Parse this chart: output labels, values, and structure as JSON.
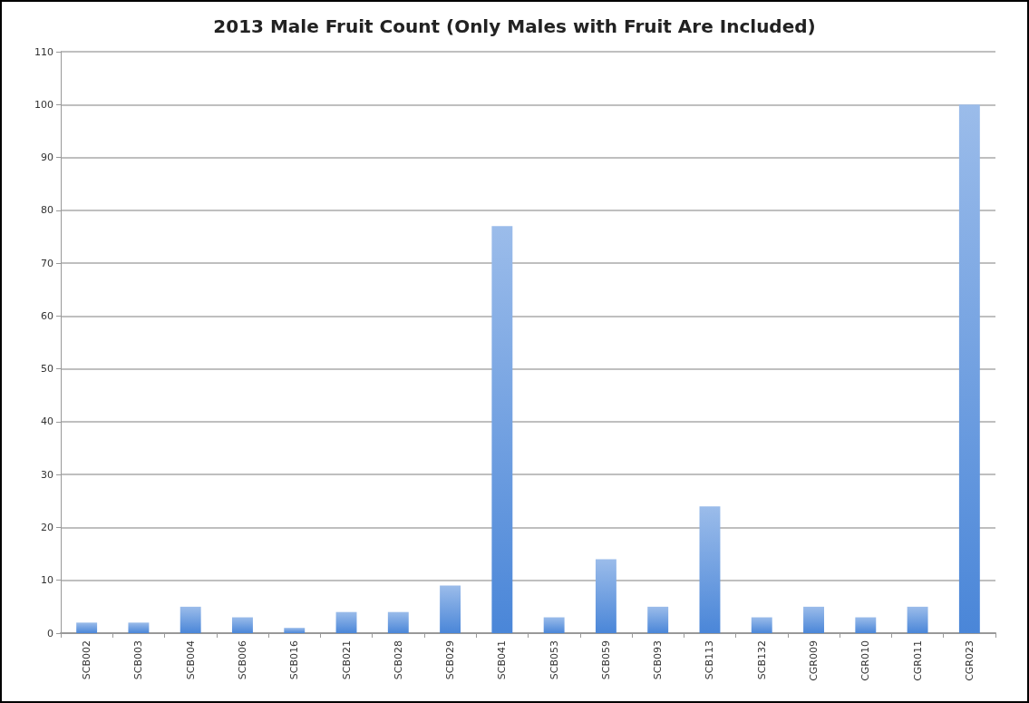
{
  "chart_data": {
    "type": "bar",
    "title": "2013 Male Fruit Count (Only Males with Fruit Are Included)",
    "categories": [
      "SCB002",
      "SCB003",
      "SCB004",
      "SCB006",
      "SCB016",
      "SCB021",
      "SCB028",
      "SCB029",
      "SCB041",
      "SCB053",
      "SCB059",
      "SCB093",
      "SCB113",
      "SCB132",
      "CGR009",
      "CGR010",
      "CGR011",
      "CGR023"
    ],
    "values": [
      2,
      2,
      5,
      3,
      1,
      4,
      4,
      9,
      77,
      3,
      14,
      5,
      24,
      3,
      5,
      3,
      5,
      100
    ],
    "color": "#4a86d8",
    "ylim": [
      0,
      110
    ],
    "yticks": [
      0,
      10,
      20,
      30,
      40,
      50,
      60,
      70,
      80,
      90,
      100,
      110
    ],
    "grid": "y"
  }
}
